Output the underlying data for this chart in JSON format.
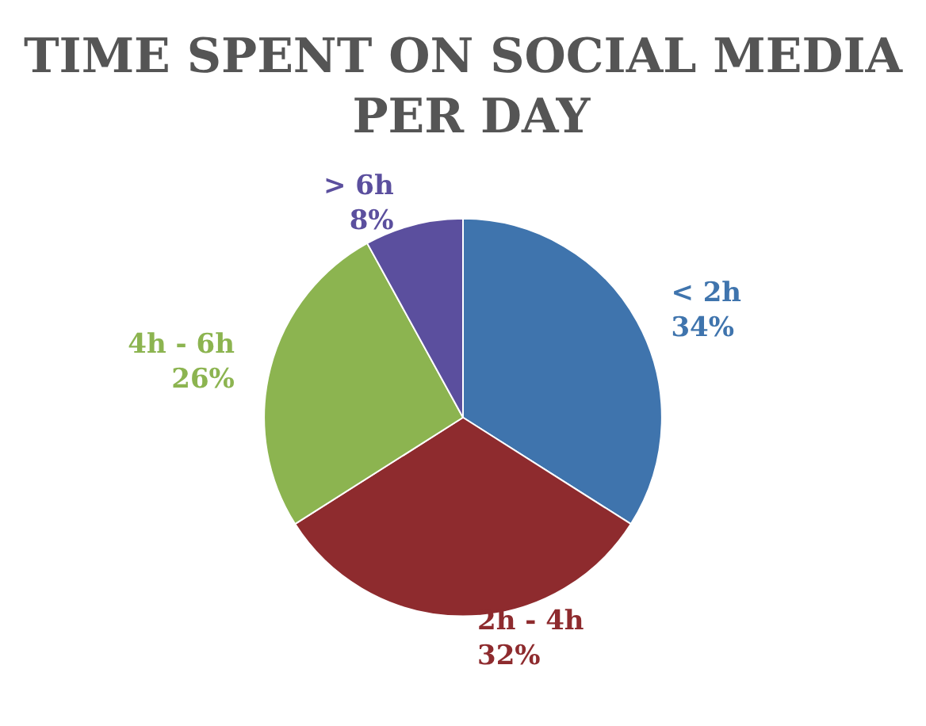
{
  "chart_data": {
    "type": "pie",
    "title": "TIME SPENT ON SOCIAL MEDIA PER DAY",
    "categories": [
      "< 2h",
      "2h - 4h",
      "4h - 6h",
      "> 6h"
    ],
    "values": [
      34,
      32,
      26,
      8
    ],
    "value_labels": [
      "34%",
      "32%",
      "26%",
      "8%"
    ],
    "colors": [
      "#3f74ad",
      "#8e2b2e",
      "#8cb450",
      "#5b4f9e"
    ],
    "legend": false
  }
}
